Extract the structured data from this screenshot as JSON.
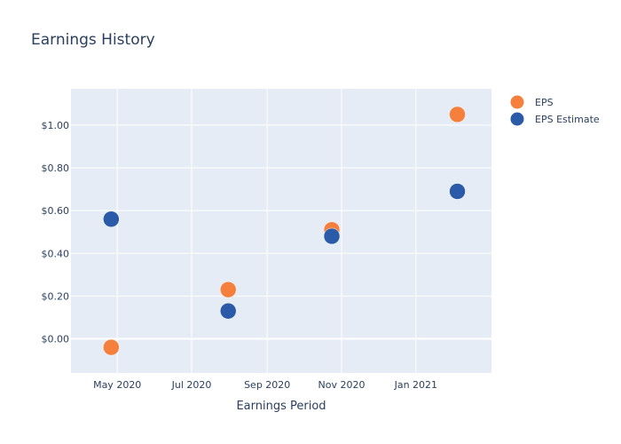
{
  "chart_data": {
    "type": "scatter",
    "title": "Earnings History",
    "xlabel": "Earnings Period",
    "ylabel": "",
    "x_ticks": [
      "2020-05-01",
      "2020-07-01",
      "2020-09-01",
      "2020-11-01",
      "2021-01-01"
    ],
    "x_tick_labels": [
      "May 2020",
      "Jul 2020",
      "Sep 2020",
      "Nov 2020",
      "Jan 2021"
    ],
    "xlim": [
      "2020-03-24",
      "2021-03-04"
    ],
    "y_ticks": [
      0,
      0.2,
      0.4,
      0.6,
      0.8,
      1.0
    ],
    "y_tick_labels": [
      "$0.00",
      "$0.20",
      "$0.40",
      "$0.60",
      "$0.80",
      "$1.00"
    ],
    "ylim": [
      -0.16,
      1.17
    ],
    "grid": true,
    "legend_position": "top-right",
    "series": [
      {
        "name": "EPS",
        "color": "#f5803e",
        "points": [
          {
            "x": "2020-04-26",
            "y": -0.04
          },
          {
            "x": "2020-07-31",
            "y": 0.23
          },
          {
            "x": "2020-10-24",
            "y": 0.51
          },
          {
            "x": "2021-02-04",
            "y": 1.05
          }
        ]
      },
      {
        "name": "EPS Estimate",
        "color": "#2a5aa8",
        "points": [
          {
            "x": "2020-04-26",
            "y": 0.56
          },
          {
            "x": "2020-07-31",
            "y": 0.13
          },
          {
            "x": "2020-10-24",
            "y": 0.48
          },
          {
            "x": "2021-02-04",
            "y": 0.69
          }
        ]
      }
    ]
  }
}
